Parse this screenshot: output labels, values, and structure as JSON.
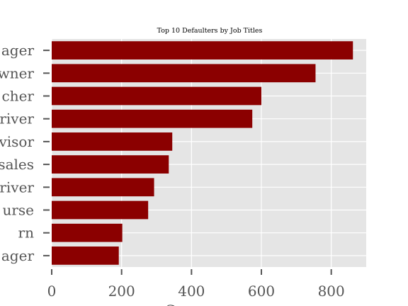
{
  "chart_data": {
    "type": "bar",
    "orientation": "horizontal",
    "title": "Top 10 Defaulters by Job Titles",
    "xlabel": "C",
    "ylabel": "",
    "categories": [
      "ager",
      "wner",
      "cher",
      "river",
      "visor",
      "sales",
      "river",
      "urse",
      "rn",
      "ager"
    ],
    "values": [
      862,
      755,
      600,
      574,
      345,
      335,
      293,
      276,
      202,
      192
    ],
    "xlim": [
      0,
      900
    ],
    "xticks": [
      0,
      200,
      400,
      600,
      800
    ],
    "grid": true,
    "colors": {
      "bar": "#8b0000",
      "plot_background": "#e5e5e5",
      "grid": "#ffffff",
      "tick": "#555555"
    }
  }
}
